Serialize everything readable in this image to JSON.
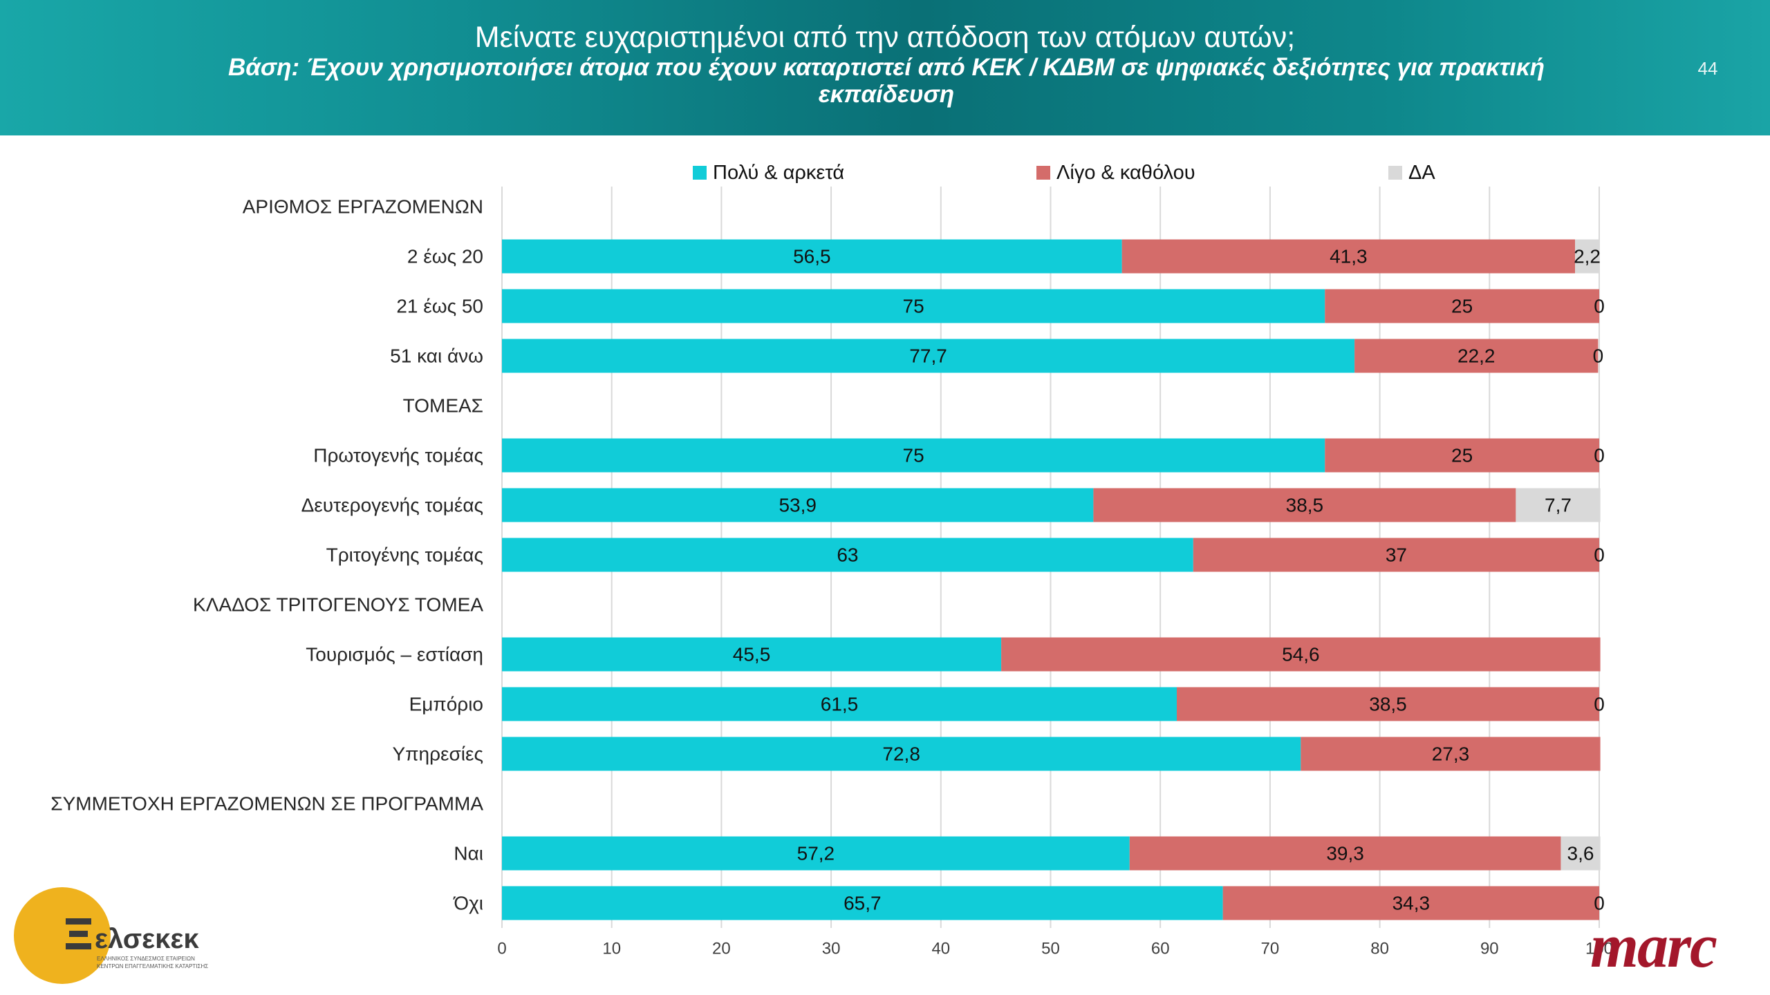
{
  "theme": {
    "header_gradient": [
      "#19a7a8",
      "#118f93",
      "#0a7076",
      "#0e878b",
      "#1aa4a6"
    ]
  },
  "header": {
    "title": "Μείνατε ευχαριστημένοι από την απόδοση των ατόμων αυτών;",
    "subtitle": "Βάση: Έχουν χρησιμοποιήσει άτομα που έχουν καταρτιστεί από ΚΕΚ / ΚΔΒΜ σε ψηφιακές δεξιότητες για πρακτική εκπαίδευση",
    "page_number": "44"
  },
  "chart_data": {
    "type": "bar",
    "orientation": "horizontal",
    "stacked": true,
    "categories": [
      "ΑΡΙΘΜΟΣ ΕΡΓΑΖΟΜΕΝΩΝ",
      "2 έως 20",
      "21 έως 50",
      "51 και άνω",
      "ΤΟΜΕΑΣ",
      "Πρωτογενής τομέας",
      "Δευτερογενής τομέας",
      "Τριτογένης τομέας",
      "ΚΛΑΔΟΣ ΤΡΙΤΟΓΕΝΟΥΣ ΤΟΜΕΑ",
      "Τουρισμός – εστίαση",
      "Εμπόριο",
      "Υπηρεσίες",
      "ΣΥΜΜΕΤΟΧΗ ΕΡΓΑΖΟΜΕΝΩΝ ΣΕ ΠΡΟΓΡΑΜΜΑ",
      "Ναι",
      "Όχι"
    ],
    "series": [
      {
        "name": "Πολύ & αρκετά",
        "color": "#11ccd8",
        "values": [
          null,
          56.5,
          75,
          77.7,
          null,
          75,
          53.9,
          63,
          null,
          45.5,
          61.5,
          72.8,
          null,
          57.2,
          65.7
        ]
      },
      {
        "name": "Λίγο & καθόλου",
        "color": "#d46c6a",
        "values": [
          null,
          41.3,
          25,
          22.2,
          null,
          25,
          38.5,
          37,
          null,
          54.6,
          38.5,
          27.3,
          null,
          39.3,
          34.3
        ]
      },
      {
        "name": "ΔΑ",
        "color": "#d9d9d9",
        "values": [
          null,
          2.2,
          0,
          0,
          null,
          0,
          7.7,
          0,
          null,
          null,
          0,
          null,
          null,
          3.6,
          0
        ]
      }
    ],
    "xlim": [
      0,
      100
    ],
    "xticks": [
      0,
      10,
      20,
      30,
      40,
      50,
      60,
      70,
      80,
      90,
      100
    ],
    "grid": true,
    "legend": "top",
    "data_labels": true
  },
  "logos": {
    "left": {
      "wordmark": "ελσεκεκ",
      "tagline": [
        "ΕΛΛΗΝΙΚΟΣ ΣΥΝΔΕΣΜΟΣ ΕΤΑΙΡΕΙΩΝ",
        "ΚΕΝΤΡΩΝ ΕΠΑΓΓΕΛΜΑΤΙΚΗΣ ΚΑΤΑΡΤΙΣΗΣ"
      ],
      "color": "#efb21e",
      "mark_color": "#3b3b3b"
    },
    "right": {
      "wordmark": "marc",
      "color": "#a3172b"
    }
  }
}
